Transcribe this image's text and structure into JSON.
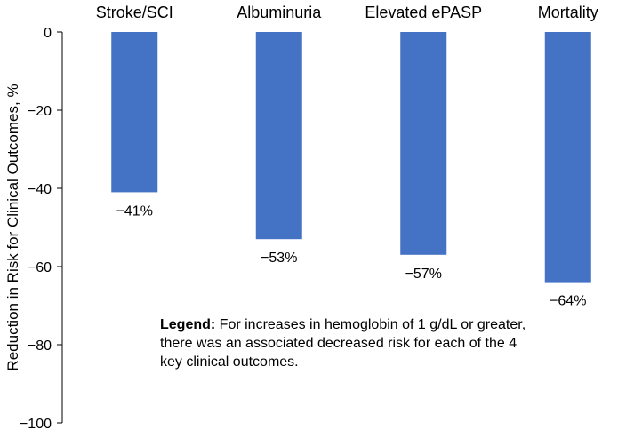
{
  "chart_data": {
    "type": "bar",
    "categories": [
      "Stroke/SCI",
      "Albuminuria",
      "Elevated ePASP",
      "Mortality"
    ],
    "values": [
      -41,
      -53,
      -57,
      -64
    ],
    "data_labels": [
      "−41%",
      "−53%",
      "−57%",
      "−64%"
    ],
    "ylabel": "Reduction in Risk for Clinical Outcomes, %",
    "ylim": [
      -100,
      0
    ],
    "yticks": [
      0,
      -20,
      -40,
      -60,
      -80,
      -100
    ],
    "ytick_labels": [
      "0",
      "−20",
      "−40",
      "−60",
      "−80",
      "−100"
    ],
    "category_axis_position": "top",
    "bar_color": "#4472C4",
    "grid": false
  },
  "legend": {
    "label": "Legend:",
    "text": "For increases in hemoglobin of 1 g/dL or greater, there was an associated decreased risk for each of the 4 key clinical outcomes."
  }
}
